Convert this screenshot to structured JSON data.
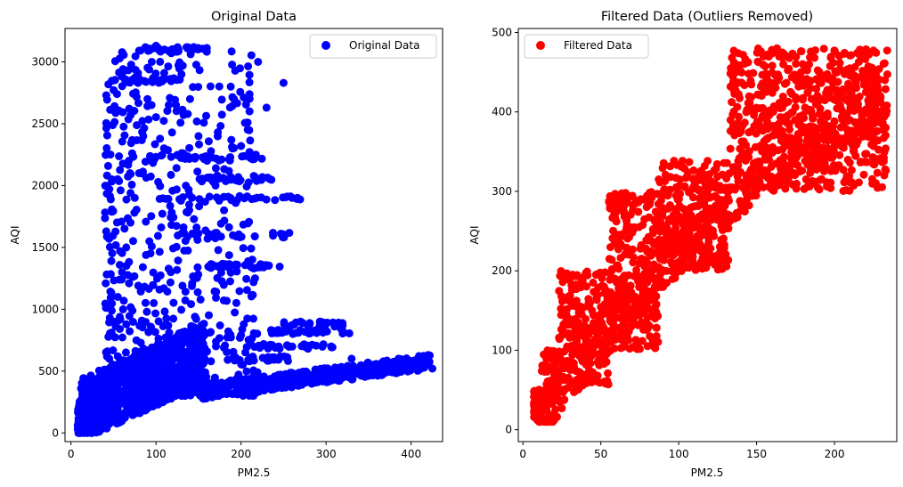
{
  "chart_data": [
    {
      "type": "scatter",
      "title": "Original Data",
      "xlabel": "PM2.5",
      "ylabel": "AQI",
      "xlim": [
        -7,
        437
      ],
      "ylim": [
        -70,
        3270
      ],
      "xticks": [
        0,
        100,
        200,
        300,
        400
      ],
      "yticks": [
        0,
        500,
        1000,
        1500,
        2000,
        2500,
        3000
      ],
      "legend_placement": "upper right",
      "grid": false,
      "series": [
        {
          "name": "Original Data",
          "color": "#0000ff",
          "x_range": [
            5,
            425
          ],
          "y_range": [
            0,
            3140
          ],
          "description_points": [
            [
              10,
              30
            ],
            [
              15,
              60
            ],
            [
              20,
              100
            ],
            [
              25,
              130
            ],
            [
              30,
              180
            ],
            [
              35,
              250
            ],
            [
              40,
              400
            ],
            [
              45,
              600
            ],
            [
              50,
              900
            ],
            [
              55,
              1100
            ],
            [
              60,
              1300
            ],
            [
              65,
              1500
            ],
            [
              70,
              1700
            ],
            [
              75,
              1900
            ],
            [
              80,
              2100
            ],
            [
              85,
              2400
            ],
            [
              90,
              2700
            ],
            [
              95,
              3000
            ],
            [
              100,
              3130
            ],
            [
              110,
              3100
            ],
            [
              120,
              3080
            ],
            [
              130,
              2900
            ],
            [
              140,
              2700
            ],
            [
              150,
              2400
            ],
            [
              160,
              2200
            ],
            [
              170,
              2000
            ],
            [
              180,
              1800
            ],
            [
              190,
              2300
            ],
            [
              200,
              2320
            ],
            [
              210,
              2600
            ],
            [
              220,
              3000
            ],
            [
              230,
              2630
            ],
            [
              250,
              2830
            ],
            [
              260,
              1900
            ],
            [
              270,
              900
            ],
            [
              300,
              880
            ],
            [
              320,
              820
            ],
            [
              330,
              600
            ],
            [
              350,
              560
            ],
            [
              370,
              540
            ],
            [
              390,
              560
            ],
            [
              410,
              600
            ],
            [
              420,
              630
            ],
            [
              425,
              520
            ]
          ]
        }
      ]
    },
    {
      "type": "scatter",
      "title": "Filtered Data (Outliers Removed)",
      "xlabel": "PM2.5",
      "ylabel": "AQI",
      "xlim": [
        -3,
        240
      ],
      "ylim": [
        -15,
        505
      ],
      "xticks": [
        0,
        50,
        100,
        150,
        200
      ],
      "yticks": [
        0,
        100,
        200,
        300,
        400,
        500
      ],
      "legend_placement": "upper left",
      "grid": false,
      "series": [
        {
          "name": "Filtered Data",
          "color": "#ff0000",
          "x_range": [
            7,
            234
          ],
          "y_range": [
            10,
            480
          ],
          "steps": [
            {
              "x": [
                7,
                12
              ],
              "y": [
                10,
                50
              ]
            },
            {
              "x": [
                12,
                23
              ],
              "y": [
                30,
                100
              ]
            },
            {
              "x": [
                23,
                55
              ],
              "y": [
                50,
                200
              ]
            },
            {
              "x": [
                55,
                87
              ],
              "y": [
                100,
                300
              ]
            },
            {
              "x": [
                87,
                133
              ],
              "y": [
                200,
                340
              ]
            },
            {
              "x": [
                133,
                234
              ],
              "y": [
                300,
                480
              ]
            }
          ]
        }
      ]
    }
  ]
}
